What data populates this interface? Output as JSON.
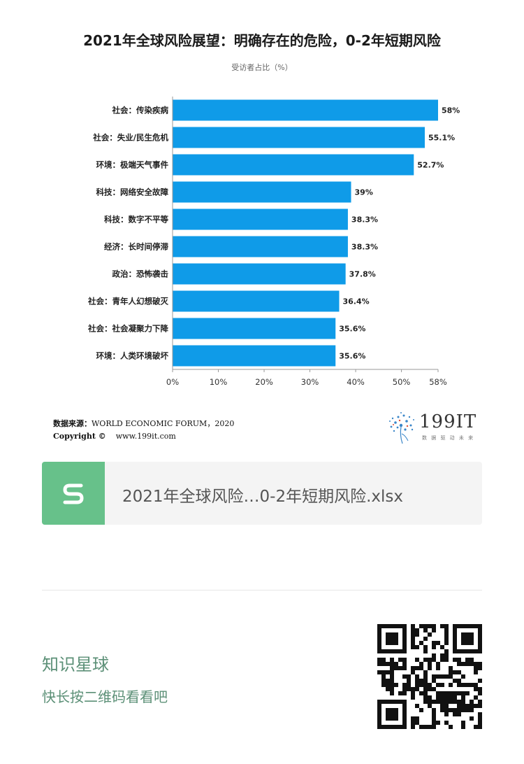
{
  "chart_data": {
    "type": "bar",
    "orientation": "horizontal",
    "title": "2021年全球风险展望：明确存在的危险，0-2年短期风险",
    "subtitle": "受访者占比（%）",
    "categories": [
      "社会：传染疾病",
      "社会：失业/民生危机",
      "环境：极端天气事件",
      "科技：网络安全故障",
      "科技：数字不平等",
      "经济：长时间停滞",
      "政治：恐怖袭击",
      "社会：青年人幻想破灭",
      "社会：社会凝聚力下降",
      "环境：人类环境破坏"
    ],
    "values": [
      58,
      55.1,
      52.7,
      39,
      38.3,
      38.3,
      37.8,
      36.4,
      35.6,
      35.6
    ],
    "value_labels": [
      "58%",
      "55.1%",
      "52.7%",
      "39%",
      "38.3%",
      "38.3%",
      "37.8%",
      "36.4%",
      "35.6%",
      "35.6%"
    ],
    "xticks": [
      0,
      10,
      20,
      30,
      40,
      50,
      58
    ],
    "xtick_labels": [
      "0%",
      "10%",
      "20%",
      "30%",
      "40%",
      "50%",
      "58%"
    ],
    "xlim": [
      0,
      58
    ],
    "grid": false,
    "color": "#0f9be8"
  },
  "source": {
    "label": "数据来源：",
    "text": "WORLD ECONOMIC FORUM，2020",
    "copyright_label": "Copyright ©",
    "url": "www.199it.com"
  },
  "brand": {
    "name": "199IT",
    "slogan": "数 据 驱 动 未 来"
  },
  "file": {
    "name": "2021年全球风险…0-2年短期风险.xlsx",
    "icon": "spreadsheet-s-icon",
    "icon_color": "#67c18a"
  },
  "footer": {
    "title": "知识星球",
    "subtitle": "快长按二维码看看吧",
    "color": "#5c9077"
  }
}
